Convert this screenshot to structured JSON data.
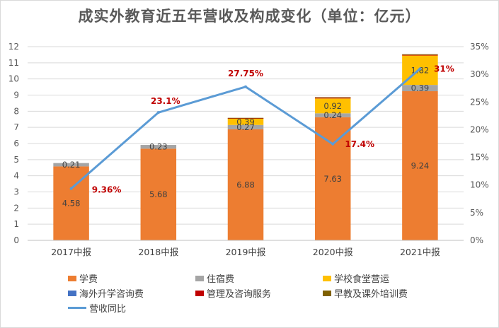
{
  "chart_data": {
    "type": "bar",
    "stacked": true,
    "title": "成实外教育近五年营收及构成变化（单位：亿元）",
    "categories": [
      "2017中报",
      "2018中报",
      "2019中报",
      "2020中报",
      "2021中报"
    ],
    "series": [
      {
        "name": "学费",
        "color": "#ED7D31",
        "values": [
          4.58,
          5.68,
          6.88,
          7.63,
          9.24
        ],
        "labels": [
          "4.58",
          "5.68",
          "6.88",
          "7.63",
          "9.24"
        ]
      },
      {
        "name": "住宿费",
        "color": "#A5A5A5",
        "values": [
          0.21,
          0.23,
          0.27,
          0.24,
          0.39
        ],
        "labels": [
          "0.21",
          "0.23",
          "0.27",
          "0.24",
          "0.39"
        ]
      },
      {
        "name": "学校食堂营运",
        "color": "#FFC000",
        "values": [
          0,
          0,
          0.39,
          0.92,
          1.82
        ],
        "labels": [
          "",
          "",
          "0.39",
          "0.92",
          "1.82"
        ]
      },
      {
        "name": "海外升学咨询费",
        "color": "#4472C4",
        "values": [
          0,
          0,
          0,
          0,
          0
        ],
        "labels": [
          "",
          "",
          "",
          "",
          ""
        ]
      },
      {
        "name": "管理及咨询服务",
        "color": "#C00000",
        "values": [
          0,
          0,
          0.03,
          0.05,
          0.04
        ],
        "labels": [
          "",
          "",
          "",
          "",
          ""
        ]
      },
      {
        "name": "早教及课外培训费",
        "color": "#7F6000",
        "values": [
          0,
          0,
          0.02,
          0.03,
          0.04
        ],
        "labels": [
          "",
          "",
          "",
          "",
          ""
        ]
      }
    ],
    "line": {
      "name": "营收同比",
      "color": "#5B9BD5",
      "values": [
        9.36,
        23.1,
        27.75,
        17.4,
        31
      ],
      "labels": [
        "9.36%",
        "23.1%",
        "27.75%",
        "17.4%",
        "31%"
      ],
      "label_color": "#C00000"
    },
    "ylim": [
      0,
      12
    ],
    "yticks": [
      "0",
      "1",
      "2",
      "3",
      "4",
      "5",
      "6",
      "7",
      "8",
      "9",
      "10",
      "11",
      "12"
    ],
    "y2lim": [
      0,
      35
    ],
    "y2ticks": [
      "0%",
      "5%",
      "10%",
      "15%",
      "20%",
      "25%",
      "30%",
      "35%"
    ],
    "grid": true,
    "legend": "bottom"
  }
}
